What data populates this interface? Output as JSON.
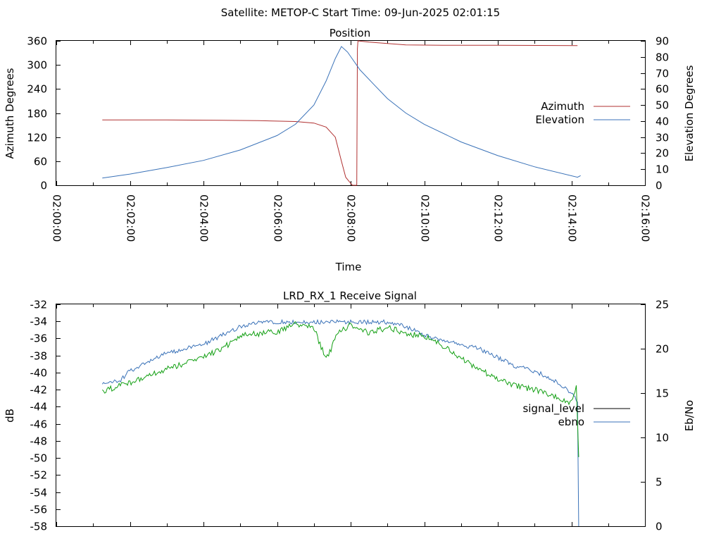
{
  "header": {
    "title": "Satellite: METOP-C    Start Time: 09-Jun-2025 02:01:15"
  },
  "colors": {
    "azimuth": "#b03030",
    "elevation": "#3a72b8",
    "signal_level": "#000000",
    "ebno": "#3a72b8",
    "signal_trace": "#14a014"
  },
  "chart_data": [
    {
      "type": "line",
      "title": "Position",
      "xlabel": "Time",
      "ylabel": "Azimuth Degrees",
      "y2label": "Elevation Degrees",
      "xlim": [
        "02:00:00",
        "02:16:00"
      ],
      "x_ticks": [
        "02:00:00",
        "02:02:00",
        "02:04:00",
        "02:06:00",
        "02:08:00",
        "02:10:00",
        "02:12:00",
        "02:14:00",
        "02:16:00"
      ],
      "ylim": [
        0,
        360
      ],
      "y_ticks": [
        "0",
        "60",
        "120",
        "180",
        "240",
        "300",
        "360"
      ],
      "y2lim": [
        0,
        90
      ],
      "y2_ticks": [
        "0",
        "10",
        "20",
        "30",
        "40",
        "50",
        "60",
        "70",
        "80",
        "90"
      ],
      "legend_position": "right",
      "series": [
        {
          "name": "Azimuth",
          "axis": "left",
          "color": "#b03030",
          "points": [
            [
              "02:01:15",
              163
            ],
            [
              "02:03:00",
              163
            ],
            [
              "02:04:30",
              162
            ],
            [
              "02:05:30",
              161
            ],
            [
              "02:06:30",
              159
            ],
            [
              "02:07:00",
              155
            ],
            [
              "02:07:20",
              145
            ],
            [
              "02:07:35",
              120
            ],
            [
              "02:07:45",
              60
            ],
            [
              "02:07:52",
              20
            ],
            [
              "02:08:00",
              5
            ],
            [
              "02:08:03",
              0
            ],
            [
              "02:08:10",
              0
            ],
            [
              "02:08:11",
              340
            ],
            [
              "02:08:12",
              360
            ],
            [
              "02:08:30",
              357
            ],
            [
              "02:09:30",
              350
            ],
            [
              "02:10:30",
              349
            ],
            [
              "02:12:00",
              349
            ],
            [
              "02:14:10",
              348
            ]
          ]
        },
        {
          "name": "Elevation",
          "axis": "right",
          "color": "#3a72b8",
          "points": [
            [
              "02:01:15",
              4.5
            ],
            [
              "02:02:00",
              7
            ],
            [
              "02:03:00",
              11
            ],
            [
              "02:04:00",
              15.5
            ],
            [
              "02:05:00",
              22
            ],
            [
              "02:06:00",
              31
            ],
            [
              "02:06:30",
              38
            ],
            [
              "02:07:00",
              50
            ],
            [
              "02:07:20",
              65
            ],
            [
              "02:07:35",
              79
            ],
            [
              "02:07:45",
              86.5
            ],
            [
              "02:07:55",
              83
            ],
            [
              "02:08:15",
              72
            ],
            [
              "02:08:40",
              62
            ],
            [
              "02:09:00",
              54
            ],
            [
              "02:09:30",
              45
            ],
            [
              "02:10:00",
              38
            ],
            [
              "02:11:00",
              27
            ],
            [
              "02:12:00",
              18.5
            ],
            [
              "02:13:00",
              11.5
            ],
            [
              "02:14:10",
              5
            ],
            [
              "02:14:15",
              6
            ]
          ]
        }
      ]
    },
    {
      "type": "line",
      "title": "LRD_RX_1 Receive Signal",
      "ylabel": "dB",
      "y2label": "Eb/No",
      "xlim": [
        "02:00:00",
        "02:16:00"
      ],
      "ylim": [
        -58,
        -32
      ],
      "y_ticks": [
        "-58",
        "-56",
        "-54",
        "-52",
        "-50",
        "-48",
        "-46",
        "-44",
        "-42",
        "-40",
        "-38",
        "-36",
        "-34",
        "-32"
      ],
      "y2lim": [
        0,
        25
      ],
      "y2_ticks": [
        "0",
        "5",
        "10",
        "15",
        "20",
        "25"
      ],
      "legend_position": "right",
      "series": [
        {
          "name": "signal_level",
          "axis": "left",
          "color": "#000000",
          "points": []
        },
        {
          "name": "ebno",
          "axis": "right",
          "color": "#3a72b8",
          "points": [
            [
              "02:01:15",
              16
            ],
            [
              "02:01:45",
              16.5
            ],
            [
              "02:02:00",
              17.5
            ],
            [
              "02:02:30",
              18.5
            ],
            [
              "02:03:00",
              19.5
            ],
            [
              "02:03:30",
              20
            ],
            [
              "02:04:00",
              20.5
            ],
            [
              "02:04:30",
              21.5
            ],
            [
              "02:05:00",
              22.5
            ],
            [
              "02:05:30",
              23
            ],
            [
              "02:06:00",
              23
            ],
            [
              "02:06:30",
              23
            ],
            [
              "02:07:00",
              23
            ],
            [
              "02:07:30",
              23
            ],
            [
              "02:08:00",
              23
            ],
            [
              "02:08:30",
              23
            ],
            [
              "02:09:00",
              23
            ],
            [
              "02:09:30",
              22.5
            ],
            [
              "02:10:00",
              21.5
            ],
            [
              "02:10:30",
              21
            ],
            [
              "02:11:00",
              20.5
            ],
            [
              "02:11:30",
              20
            ],
            [
              "02:12:00",
              19
            ],
            [
              "02:12:30",
              18
            ],
            [
              "02:13:00",
              17.5
            ],
            [
              "02:13:30",
              16.5
            ],
            [
              "02:14:00",
              15
            ],
            [
              "02:14:10",
              14
            ],
            [
              "02:14:12",
              0
            ]
          ]
        },
        {
          "name": "",
          "axis": "left",
          "color": "#14a014",
          "points": [
            [
              "02:01:15",
              -42.2
            ],
            [
              "02:02:00",
              -41.2
            ],
            [
              "02:03:00",
              -39.6
            ],
            [
              "02:04:00",
              -38.2
            ],
            [
              "02:04:30",
              -37.2
            ],
            [
              "02:05:00",
              -35.7
            ],
            [
              "02:06:00",
              -35.2
            ],
            [
              "02:06:30",
              -34.3
            ],
            [
              "02:07:00",
              -34.8
            ],
            [
              "02:07:20",
              -38.5
            ],
            [
              "02:07:40",
              -35.3
            ],
            [
              "02:08:00",
              -34.4
            ],
            [
              "02:08:30",
              -35.4
            ],
            [
              "02:09:00",
              -34.7
            ],
            [
              "02:09:30",
              -35.4
            ],
            [
              "02:10:00",
              -35.8
            ],
            [
              "02:10:30",
              -36.8
            ],
            [
              "02:11:00",
              -38.3
            ],
            [
              "02:11:30",
              -39.6
            ],
            [
              "02:12:00",
              -40.8
            ],
            [
              "02:12:30",
              -41.5
            ],
            [
              "02:13:00",
              -42.0
            ],
            [
              "02:13:30",
              -42.8
            ],
            [
              "02:14:00",
              -43.6
            ],
            [
              "02:14:08",
              -41.5
            ],
            [
              "02:14:12",
              -49.9
            ]
          ]
        }
      ]
    }
  ]
}
